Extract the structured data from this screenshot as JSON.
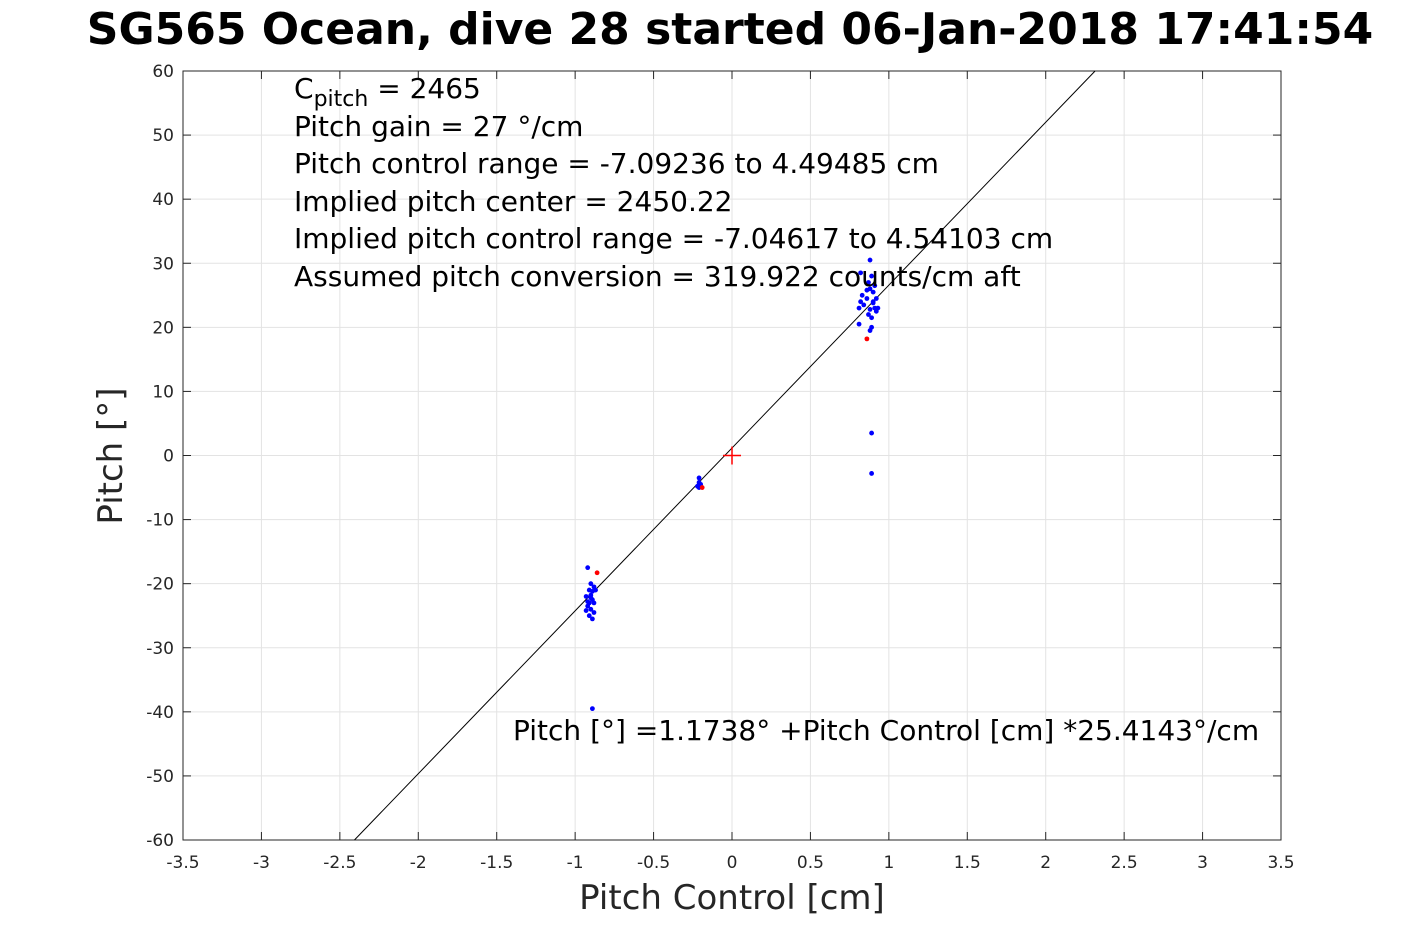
{
  "chart_data": {
    "type": "scatter",
    "title": "SG565 Ocean, dive 28 started 06-Jan-2018 17:41:54",
    "xlabel": "Pitch Control [cm]",
    "ylabel": "Pitch [°]",
    "xlim": [
      -3.5,
      3.5
    ],
    "ylim": [
      -60,
      60
    ],
    "xticks": [
      -3.5,
      -3,
      -2.5,
      -2,
      -1.5,
      -1,
      -0.5,
      0,
      0.5,
      1,
      1.5,
      2,
      2.5,
      3,
      3.5
    ],
    "xtick_labels": [
      "-3.5",
      "-3",
      "-2.5",
      "-2",
      "-1.5",
      "-1",
      "-0.5",
      "0",
      "0.5",
      "1",
      "1.5",
      "2",
      "2.5",
      "3",
      "3.5"
    ],
    "yticks": [
      -60,
      -50,
      -40,
      -30,
      -20,
      -10,
      0,
      10,
      20,
      30,
      40,
      50,
      60
    ],
    "ytick_labels": [
      "-60",
      "-50",
      "-40",
      "-30",
      "-20",
      "-10",
      "0",
      "10",
      "20",
      "30",
      "40",
      "50",
      "60"
    ],
    "grid": true,
    "annotations": {
      "c_pitch_symbol": "C",
      "c_pitch_sub": "pitch",
      "c_pitch_value": " = 2465",
      "lines": [
        "Pitch gain = 27 °/cm",
        "Pitch control range = -7.09236 to 4.49485 cm",
        "Implied pitch center = 2450.22",
        "Implied pitch control range = -7.04617 to 4.54103 cm",
        "Assumed pitch conversion = 319.922 counts/cm aft"
      ],
      "fit_equation": "Pitch [°] =1.1738° +Pitch Control [cm] *25.4143°/cm"
    },
    "fit_line": {
      "intercept": 1.1738,
      "slope": 25.4143,
      "color": "#000000"
    },
    "center_marker": {
      "x": 0,
      "y": 0,
      "color": "#ff0000",
      "shape": "plus"
    },
    "series": [
      {
        "color": "#0000ff",
        "points": [
          [
            -0.93,
            -22.0
          ],
          [
            -0.92,
            -23.5
          ],
          [
            -0.91,
            -21.0
          ],
          [
            -0.9,
            -24.0
          ],
          [
            -0.89,
            -22.5
          ],
          [
            -0.88,
            -20.5
          ],
          [
            -0.9,
            -20.0
          ],
          [
            -0.91,
            -25.0
          ],
          [
            -0.89,
            -25.5
          ],
          [
            -0.88,
            -23.0
          ],
          [
            -0.92,
            -22.8
          ],
          [
            -0.9,
            -21.8
          ],
          [
            -0.87,
            -21.0
          ],
          [
            -0.93,
            -24.2
          ],
          [
            -0.91,
            -23.0
          ],
          [
            -0.89,
            -21.2
          ],
          [
            -0.88,
            -24.5
          ],
          [
            -0.92,
            -17.5
          ],
          [
            -0.89,
            -39.5
          ],
          [
            -0.9,
            -22.2
          ],
          [
            -0.21,
            -3.5
          ],
          [
            -0.21,
            -4.2
          ],
          [
            -0.22,
            -4.8
          ],
          [
            -0.21,
            -5.0
          ],
          [
            -0.2,
            -4.5
          ],
          [
            0.82,
            24.0
          ],
          [
            0.81,
            23.0
          ],
          [
            0.82,
            28.5
          ],
          [
            0.83,
            25.0
          ],
          [
            0.84,
            23.5
          ],
          [
            0.86,
            24.5
          ],
          [
            0.87,
            22.0
          ],
          [
            0.88,
            26.0
          ],
          [
            0.89,
            21.5
          ],
          [
            0.9,
            25.5
          ],
          [
            0.91,
            23.0
          ],
          [
            0.92,
            22.5
          ],
          [
            0.88,
            30.5
          ],
          [
            0.89,
            28.0
          ],
          [
            0.87,
            27.0
          ],
          [
            0.9,
            24.0
          ],
          [
            0.91,
            26.5
          ],
          [
            0.92,
            24.5
          ],
          [
            0.93,
            23.0
          ],
          [
            0.89,
            20.0
          ],
          [
            0.88,
            19.5
          ],
          [
            0.81,
            20.5
          ],
          [
            0.89,
            3.5
          ],
          [
            0.89,
            -2.8
          ],
          [
            0.86,
            25.8
          ],
          [
            0.9,
            23.8
          ],
          [
            0.88,
            22.8
          ]
        ]
      },
      {
        "color": "#ff0000",
        "points": [
          [
            0.86,
            18.2
          ],
          [
            -0.86,
            -18.3
          ],
          [
            -0.19,
            -5.0
          ]
        ]
      }
    ]
  }
}
